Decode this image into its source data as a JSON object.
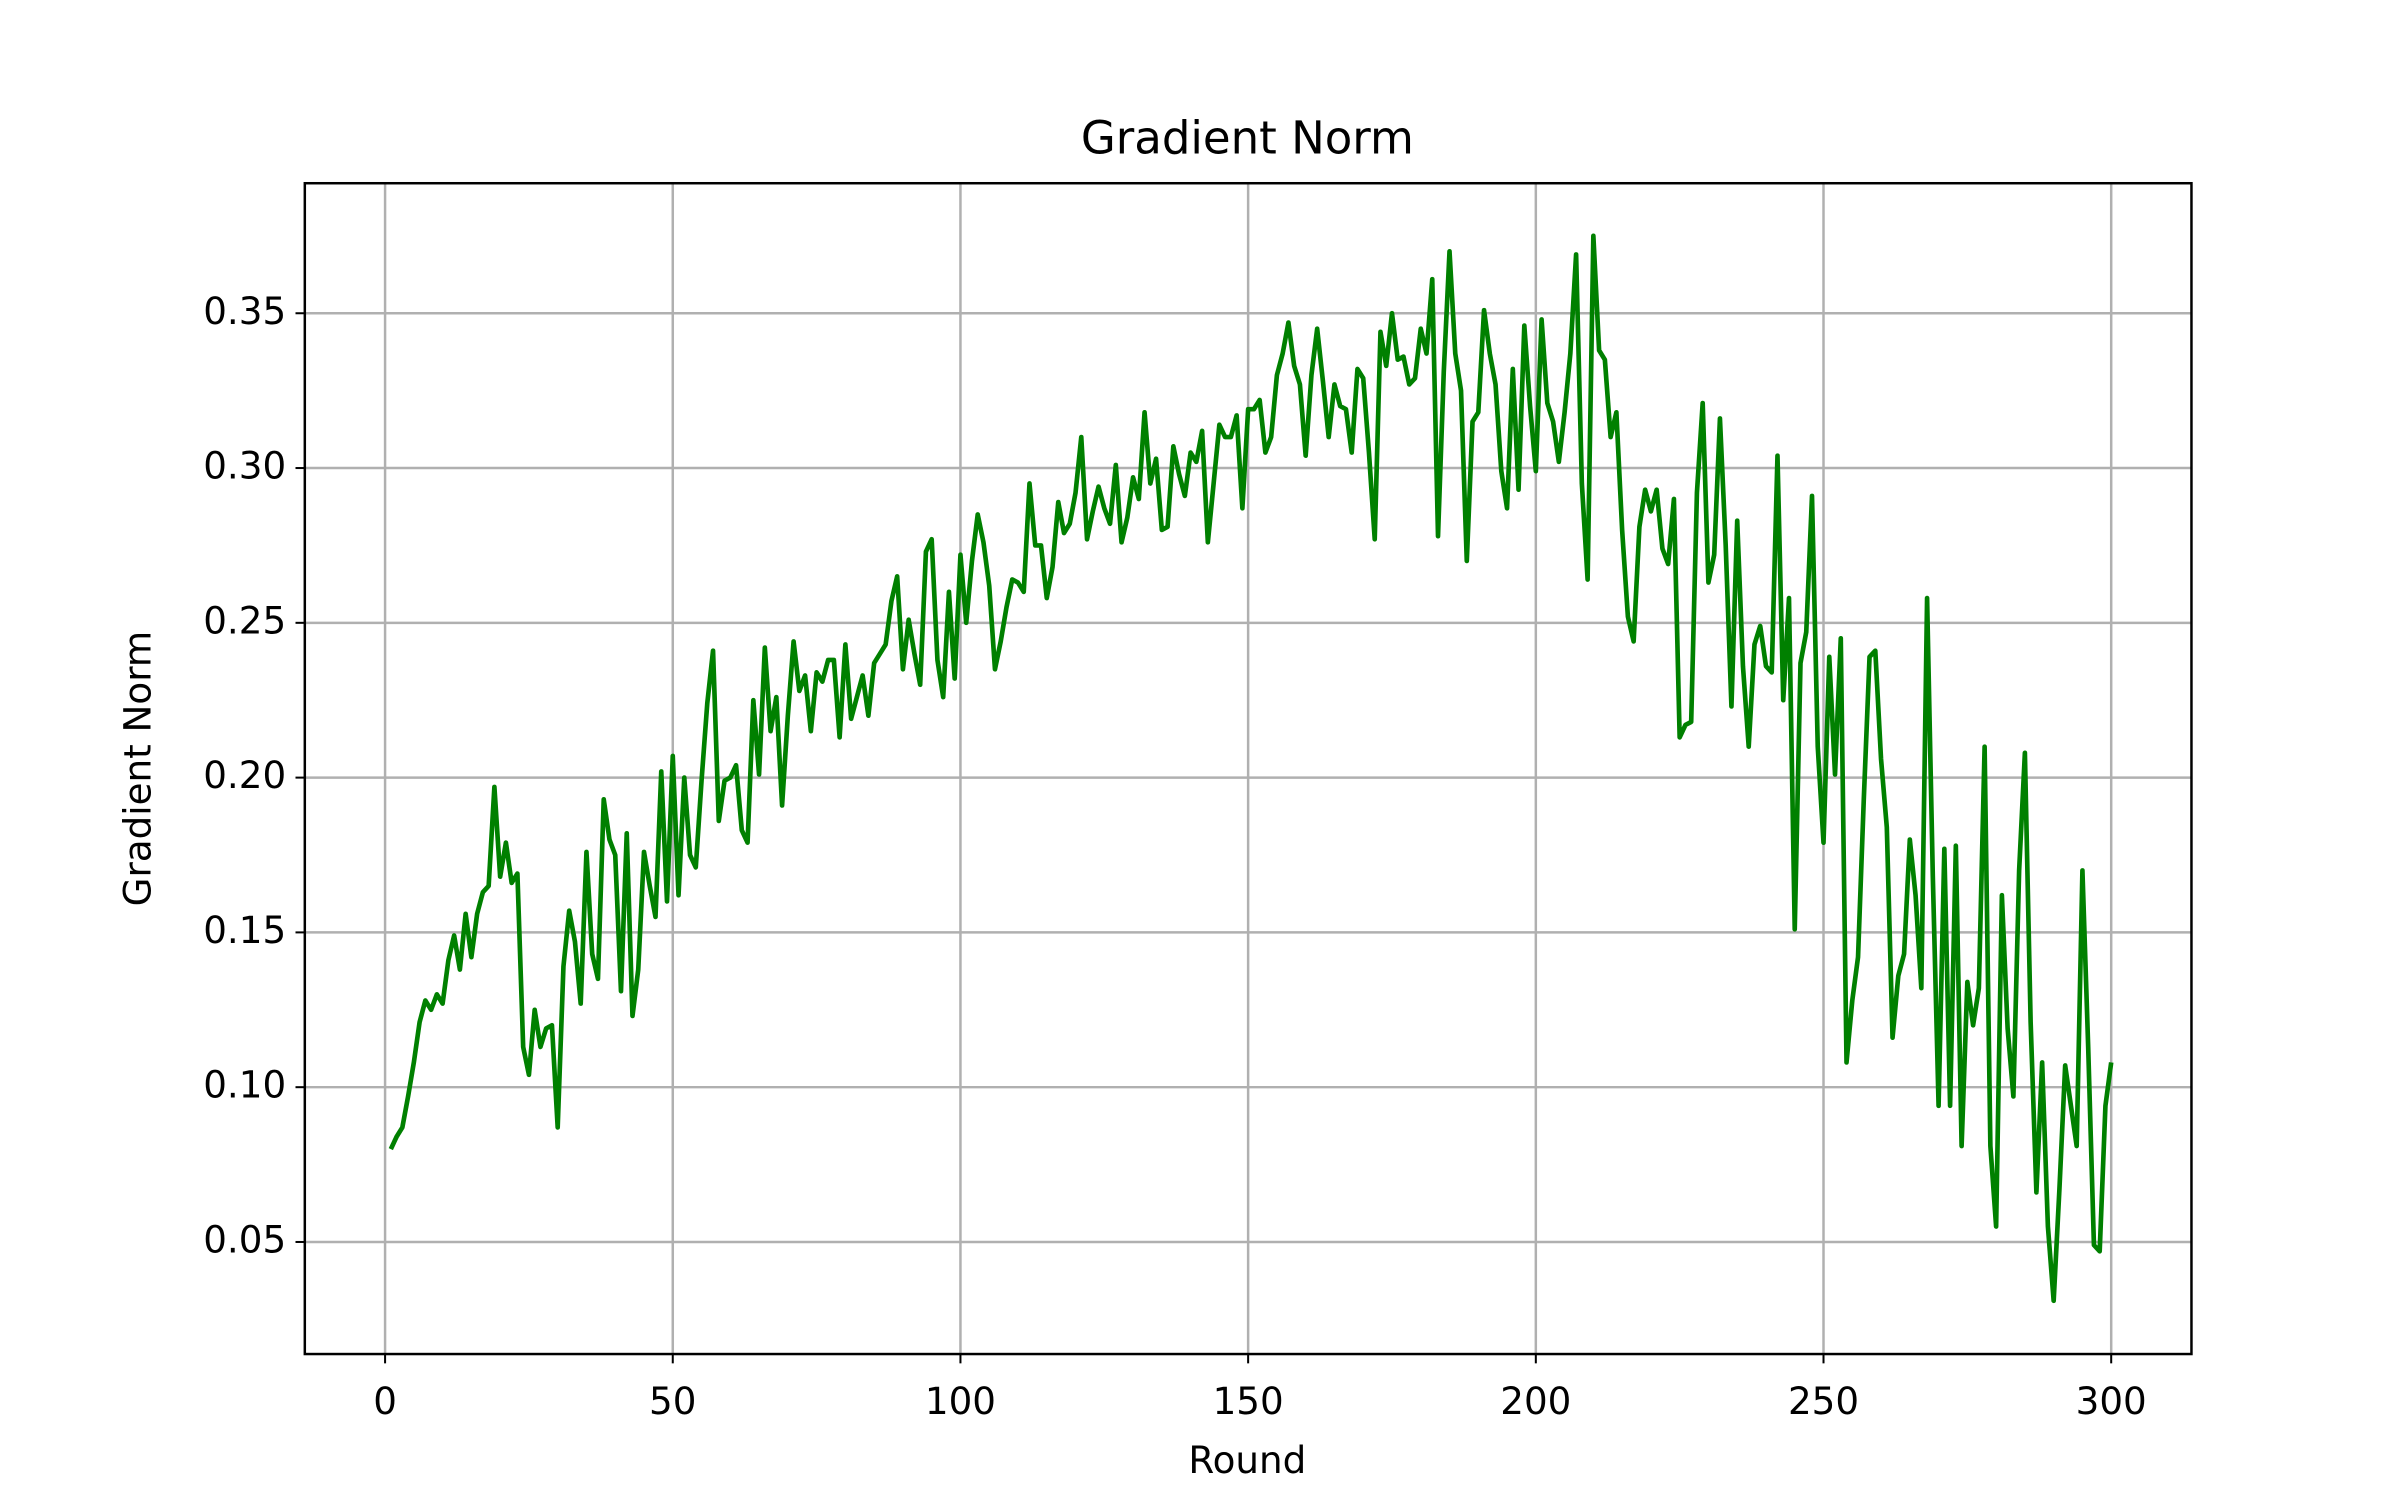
{
  "chart_data": {
    "type": "line",
    "title": "Gradient Norm",
    "xlabel": "Round",
    "ylabel": "Gradient Norm",
    "color": "#008000",
    "grid": true,
    "xlim": [
      -13.95,
      313.95
    ],
    "ylim": [
      0.0138,
      0.392
    ],
    "xticks": [
      0,
      50,
      100,
      150,
      200,
      250,
      300
    ],
    "yticks": [
      0.05,
      {
        "value": 0.1,
        "label": "0.10"
      },
      0.15,
      {
        "value": 0.2,
        "label": "0.20"
      },
      0.25,
      {
        "value": 0.3,
        "label": "0.30"
      },
      0.35
    ],
    "x": [
      1,
      2,
      3,
      4,
      5,
      6,
      7,
      8,
      9,
      10,
      11,
      12,
      13,
      14,
      15,
      16,
      17,
      18,
      19,
      20,
      21,
      22,
      23,
      24,
      25,
      26,
      27,
      28,
      29,
      30,
      31,
      32,
      33,
      34,
      35,
      36,
      37,
      38,
      39,
      40,
      41,
      42,
      43,
      44,
      45,
      46,
      47,
      48,
      49,
      50,
      51,
      52,
      53,
      54,
      55,
      56,
      57,
      58,
      59,
      60,
      61,
      62,
      63,
      64,
      65,
      66,
      67,
      68,
      69,
      70,
      71,
      72,
      73,
      74,
      75,
      76,
      77,
      78,
      79,
      80,
      81,
      82,
      83,
      84,
      85,
      86,
      87,
      88,
      89,
      90,
      91,
      92,
      93,
      94,
      95,
      96,
      97,
      98,
      99,
      100,
      101,
      102,
      103,
      104,
      105,
      106,
      107,
      108,
      109,
      110,
      111,
      112,
      113,
      114,
      115,
      116,
      117,
      118,
      119,
      120,
      121,
      122,
      123,
      124,
      125,
      126,
      127,
      128,
      129,
      130,
      131,
      132,
      133,
      134,
      135,
      136,
      137,
      138,
      139,
      140,
      141,
      142,
      143,
      144,
      145,
      146,
      147,
      148,
      149,
      150,
      151,
      152,
      153,
      154,
      155,
      156,
      157,
      158,
      159,
      160,
      161,
      162,
      163,
      164,
      165,
      166,
      167,
      168,
      169,
      170,
      171,
      172,
      173,
      174,
      175,
      176,
      177,
      178,
      179,
      180,
      181,
      182,
      183,
      184,
      185,
      186,
      187,
      188,
      189,
      190,
      191,
      192,
      193,
      194,
      195,
      196,
      197,
      198,
      199,
      200,
      201,
      202,
      203,
      204,
      205,
      206,
      207,
      208,
      209,
      210,
      211,
      212,
      213,
      214,
      215,
      216,
      217,
      218,
      219,
      220,
      221,
      222,
      223,
      224,
      225,
      226,
      227,
      228,
      229,
      230,
      231,
      232,
      233,
      234,
      235,
      236,
      237,
      238,
      239,
      240,
      241,
      242,
      243,
      244,
      245,
      246,
      247,
      248,
      249,
      250,
      251,
      252,
      253,
      254,
      255,
      256,
      257,
      258,
      259,
      260,
      261,
      262,
      263,
      264,
      265,
      266,
      267,
      268,
      269,
      270,
      271,
      272,
      273,
      274,
      275,
      276,
      277,
      278,
      279,
      280,
      281,
      282,
      283,
      284,
      285,
      286,
      287,
      288,
      289,
      290,
      291,
      292,
      293,
      294,
      295,
      296,
      297,
      298,
      299,
      300
    ],
    "values": [
      0.08,
      0.084,
      0.087,
      0.097,
      0.108,
      0.121,
      0.128,
      0.125,
      0.13,
      0.127,
      0.141,
      0.149,
      0.138,
      0.156,
      0.142,
      0.156,
      0.163,
      0.165,
      0.197,
      0.168,
      0.179,
      0.166,
      0.169,
      0.113,
      0.104,
      0.125,
      0.113,
      0.119,
      0.12,
      0.087,
      0.139,
      0.157,
      0.147,
      0.127,
      0.176,
      0.143,
      0.135,
      0.193,
      0.18,
      0.175,
      0.131,
      0.182,
      0.123,
      0.138,
      0.176,
      0.165,
      0.155,
      0.202,
      0.16,
      0.207,
      0.162,
      0.2,
      0.175,
      0.171,
      0.199,
      0.224,
      0.241,
      0.186,
      0.199,
      0.2,
      0.204,
      0.183,
      0.179,
      0.225,
      0.201,
      0.242,
      0.215,
      0.226,
      0.191,
      0.22,
      0.244,
      0.228,
      0.233,
      0.215,
      0.234,
      0.231,
      0.238,
      0.238,
      0.213,
      0.243,
      0.219,
      0.226,
      0.233,
      0.22,
      0.237,
      0.24,
      0.243,
      0.257,
      0.265,
      0.235,
      0.251,
      0.24,
      0.23,
      0.273,
      0.277,
      0.238,
      0.226,
      0.26,
      0.232,
      0.272,
      0.25,
      0.27,
      0.285,
      0.276,
      0.262,
      0.235,
      0.244,
      0.255,
      0.264,
      0.263,
      0.26,
      0.295,
      0.275,
      0.275,
      0.258,
      0.268,
      0.289,
      0.279,
      0.282,
      0.292,
      0.31,
      0.277,
      0.286,
      0.294,
      0.287,
      0.282,
      0.301,
      0.276,
      0.284,
      0.297,
      0.29,
      0.318,
      0.295,
      0.303,
      0.28,
      0.281,
      0.307,
      0.298,
      0.291,
      0.305,
      0.302,
      0.312,
      0.276,
      0.295,
      0.314,
      0.31,
      0.31,
      0.317,
      0.287,
      0.319,
      0.319,
      0.322,
      0.305,
      0.31,
      0.33,
      0.337,
      0.347,
      0.333,
      0.327,
      0.304,
      0.33,
      0.345,
      0.328,
      0.31,
      0.327,
      0.32,
      0.319,
      0.305,
      0.332,
      0.329,
      0.305,
      0.277,
      0.344,
      0.333,
      0.35,
      0.335,
      0.336,
      0.327,
      0.329,
      0.345,
      0.337,
      0.361,
      0.278,
      0.331,
      0.37,
      0.337,
      0.325,
      0.27,
      0.315,
      0.318,
      0.351,
      0.337,
      0.327,
      0.299,
      0.287,
      0.332,
      0.293,
      0.346,
      0.32,
      0.299,
      0.348,
      0.321,
      0.315,
      0.302,
      0.318,
      0.337,
      0.369,
      0.295,
      0.264,
      0.375,
      0.338,
      0.335,
      0.31,
      0.318,
      0.28,
      0.252,
      0.244,
      0.281,
      0.293,
      0.286,
      0.293,
      0.274,
      0.269,
      0.29,
      0.213,
      0.217,
      0.218,
      0.292,
      0.321,
      0.263,
      0.272,
      0.316,
      0.275,
      0.223,
      0.283,
      0.236,
      0.21,
      0.243,
      0.249,
      0.236,
      0.234,
      0.304,
      0.225,
      0.258,
      0.151,
      0.237,
      0.247,
      0.291,
      0.21,
      0.179,
      0.239,
      0.201,
      0.245,
      0.108,
      0.128,
      0.142,
      0.193,
      0.239,
      0.241,
      0.206,
      0.184,
      0.116,
      0.136,
      0.143,
      0.18,
      0.162,
      0.132,
      0.258,
      0.168,
      0.094,
      0.177,
      0.094,
      0.178,
      0.081,
      0.134,
      0.12,
      0.132,
      0.21,
      0.081,
      0.055,
      0.162,
      0.119,
      0.097,
      0.17,
      0.208,
      0.121,
      0.066,
      0.108,
      0.055,
      0.031,
      0.067,
      0.107,
      0.094,
      0.081,
      0.17,
      0.113,
      0.049,
      0.047,
      0.094,
      0.108
    ]
  }
}
